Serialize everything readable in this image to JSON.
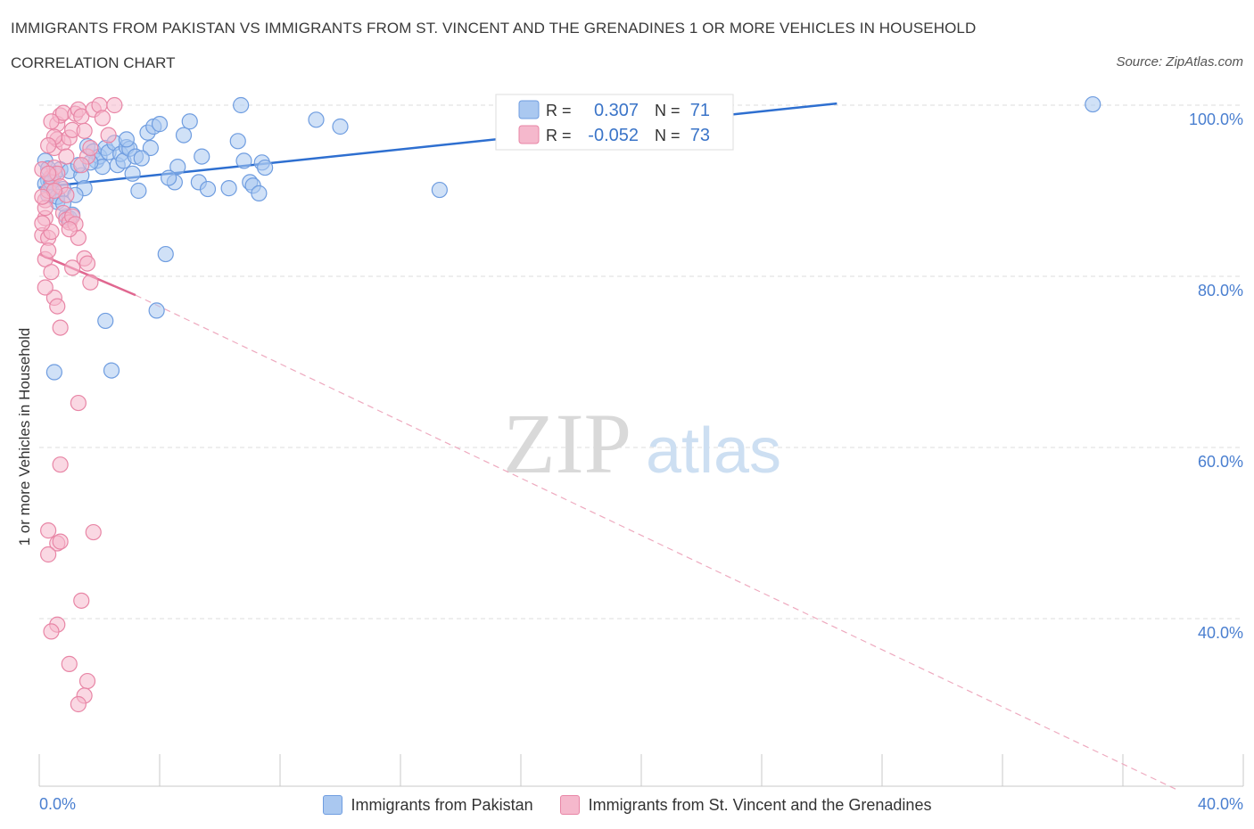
{
  "chart_data": {
    "type": "scatter",
    "title": "IMMIGRANTS FROM PAKISTAN VS IMMIGRANTS FROM ST. VINCENT AND THE GRENADINES 1 OR MORE VEHICLES IN HOUSEHOLD",
    "subtitle": "CORRELATION CHART",
    "source": "Source: ZipAtlas.com",
    "xlabel": "",
    "ylabel": "1 or more Vehicles in Household",
    "xlim": [
      0,
      40
    ],
    "ylim": [
      20,
      100
    ],
    "x_tick_labels": [
      "0.0%",
      "40.0%"
    ],
    "y_ticks": [
      100,
      80,
      60,
      40
    ],
    "y_tick_labels": [
      "100.0%",
      "80.0%",
      "60.0%",
      "40.0%"
    ],
    "grid": true,
    "legend_position": "top-center",
    "legend": [
      {
        "r_label": "R =",
        "r_value": "0.307",
        "n_label": "N =",
        "n_value": "71"
      },
      {
        "r_label": "R =",
        "r_value": "-0.052",
        "n_label": "N =",
        "n_value": "73"
      }
    ],
    "watermark": {
      "zip": "ZIP",
      "atlas": "atlas"
    },
    "series": [
      {
        "name": "Immigrants from Pakistan",
        "color": "#6f9de0",
        "fill": "#aac8f0",
        "trend": {
          "x": [
            0.0,
            26.5
          ],
          "y": [
            90.4,
            100.2
          ],
          "dashed_extension": false
        },
        "points": [
          [
            0.2,
            93.5
          ],
          [
            0.3,
            91.2
          ],
          [
            0.4,
            90.5
          ],
          [
            0.5,
            92.0
          ],
          [
            0.3,
            89.5
          ],
          [
            0.6,
            88.7
          ],
          [
            0.8,
            90.2
          ],
          [
            0.9,
            87.0
          ],
          [
            1.0,
            86.8
          ],
          [
            1.1,
            87.2
          ],
          [
            0.7,
            92.5
          ],
          [
            1.0,
            92.3
          ],
          [
            1.4,
            91.8
          ],
          [
            1.3,
            93.0
          ],
          [
            1.5,
            90.3
          ],
          [
            1.6,
            95.2
          ],
          [
            1.8,
            94.6
          ],
          [
            1.9,
            93.5
          ],
          [
            2.0,
            94.0
          ],
          [
            2.2,
            95.0
          ],
          [
            2.3,
            94.5
          ],
          [
            2.5,
            95.6
          ],
          [
            2.6,
            93.0
          ],
          [
            2.7,
            94.3
          ],
          [
            2.8,
            93.5
          ],
          [
            2.9,
            95.1
          ],
          [
            3.0,
            94.9
          ],
          [
            3.1,
            92.0
          ],
          [
            3.2,
            94.0
          ],
          [
            3.3,
            90.0
          ],
          [
            3.6,
            96.8
          ],
          [
            3.7,
            95.0
          ],
          [
            3.8,
            97.5
          ],
          [
            4.0,
            97.8
          ],
          [
            4.2,
            82.6
          ],
          [
            4.5,
            91.0
          ],
          [
            4.6,
            92.8
          ],
          [
            4.8,
            96.5
          ],
          [
            5.0,
            98.1
          ],
          [
            5.3,
            91.0
          ],
          [
            5.4,
            94.0
          ],
          [
            5.6,
            90.2
          ],
          [
            6.3,
            90.3
          ],
          [
            6.6,
            95.8
          ],
          [
            6.7,
            100.0
          ],
          [
            6.8,
            93.5
          ],
          [
            7.0,
            91.0
          ],
          [
            7.1,
            90.6
          ],
          [
            7.3,
            89.7
          ],
          [
            7.4,
            93.3
          ],
          [
            7.5,
            92.7
          ],
          [
            9.2,
            98.3
          ],
          [
            10.0,
            97.5
          ],
          [
            2.2,
            74.8
          ],
          [
            2.4,
            69.0
          ],
          [
            0.5,
            68.8
          ],
          [
            3.9,
            76.0
          ],
          [
            13.3,
            90.1
          ],
          [
            16.2,
            100.2
          ],
          [
            35.0,
            100.1
          ],
          [
            0.2,
            90.8
          ],
          [
            0.4,
            91.0
          ],
          [
            0.6,
            89.3
          ],
          [
            1.2,
            89.5
          ],
          [
            0.8,
            88.5
          ],
          [
            2.1,
            92.8
          ],
          [
            3.4,
            93.8
          ],
          [
            4.3,
            91.5
          ],
          [
            1.7,
            93.3
          ],
          [
            2.9,
            96.0
          ],
          [
            0.3,
            92.6
          ]
        ]
      },
      {
        "name": "Immigrants from St. Vincent and the Grenadines",
        "color": "#e886a6",
        "fill": "#f5b8cc",
        "trend": {
          "x": [
            0.0,
            3.2
          ],
          "y": [
            82.6,
            77.8
          ],
          "dashed_extension_to": [
            37.8,
            20.0
          ]
        },
        "points": [
          [
            0.1,
            84.8
          ],
          [
            0.2,
            88.9
          ],
          [
            0.2,
            86.8
          ],
          [
            0.3,
            90.0
          ],
          [
            0.3,
            84.5
          ],
          [
            0.4,
            85.2
          ],
          [
            0.4,
            91.6
          ],
          [
            0.5,
            92.7
          ],
          [
            0.5,
            95.0
          ],
          [
            0.6,
            96.0
          ],
          [
            0.6,
            97.8
          ],
          [
            0.7,
            98.8
          ],
          [
            0.8,
            99.1
          ],
          [
            0.8,
            95.6
          ],
          [
            0.9,
            94.0
          ],
          [
            1.0,
            96.2
          ],
          [
            1.1,
            97.1
          ],
          [
            1.2,
            99.0
          ],
          [
            1.3,
            99.5
          ],
          [
            1.4,
            98.7
          ],
          [
            1.5,
            97.0
          ],
          [
            1.6,
            94.0
          ],
          [
            1.7,
            95.0
          ],
          [
            1.8,
            99.5
          ],
          [
            2.0,
            100.0
          ],
          [
            2.1,
            98.5
          ],
          [
            2.5,
            100.0
          ],
          [
            0.4,
            98.1
          ],
          [
            0.5,
            96.3
          ],
          [
            0.3,
            95.3
          ],
          [
            0.6,
            92.0
          ],
          [
            0.7,
            90.5
          ],
          [
            0.8,
            87.4
          ],
          [
            0.9,
            86.6
          ],
          [
            1.0,
            86.3
          ],
          [
            1.1,
            87.0
          ],
          [
            1.2,
            86.1
          ],
          [
            1.3,
            84.5
          ],
          [
            0.2,
            82.0
          ],
          [
            0.3,
            83.0
          ],
          [
            0.4,
            80.5
          ],
          [
            0.5,
            77.5
          ],
          [
            0.6,
            76.5
          ],
          [
            0.7,
            74.0
          ],
          [
            1.5,
            82.1
          ],
          [
            1.6,
            81.5
          ],
          [
            1.7,
            79.3
          ],
          [
            1.1,
            81.0
          ],
          [
            1.3,
            65.2
          ],
          [
            0.7,
            58.0
          ],
          [
            0.3,
            50.3
          ],
          [
            0.6,
            48.8
          ],
          [
            0.7,
            49.0
          ],
          [
            1.8,
            50.1
          ],
          [
            0.3,
            47.5
          ],
          [
            1.4,
            42.1
          ],
          [
            0.6,
            39.3
          ],
          [
            0.4,
            38.5
          ],
          [
            1.0,
            34.7
          ],
          [
            1.6,
            32.7
          ],
          [
            1.5,
            31.0
          ],
          [
            1.3,
            30.0
          ],
          [
            0.1,
            92.5
          ],
          [
            0.2,
            88.0
          ],
          [
            0.1,
            86.2
          ],
          [
            0.2,
            78.7
          ],
          [
            0.9,
            89.5
          ],
          [
            1.4,
            93.0
          ],
          [
            2.3,
            96.5
          ],
          [
            0.3,
            92.0
          ],
          [
            0.5,
            90.0
          ],
          [
            1.0,
            85.5
          ],
          [
            0.1,
            89.3
          ]
        ]
      }
    ]
  }
}
